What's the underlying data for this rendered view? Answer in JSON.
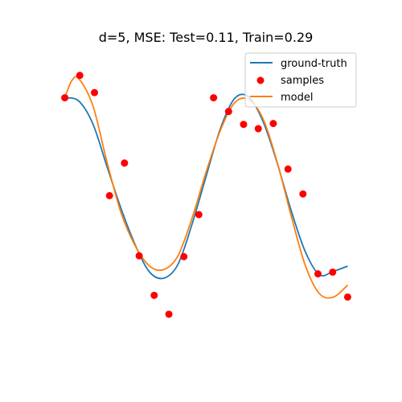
{
  "chart_data": {
    "type": "line",
    "title": "d=5, MSE: Test=0.11, Train=0.29",
    "xlabel": "",
    "ylabel": "",
    "axes_visible": false,
    "grid": false,
    "xlim": [
      -0.05,
      1.05
    ],
    "ylim": [
      -2.0,
      1.5
    ],
    "legend": {
      "position": "top-right",
      "entries": [
        {
          "label": "ground-truth",
          "kind": "line",
          "color": "#1f77b4"
        },
        {
          "label": "samples",
          "kind": "marker",
          "color": "#ff0000"
        },
        {
          "label": "model",
          "kind": "line",
          "color": "#ff7f0e"
        }
      ]
    },
    "series": [
      {
        "name": "ground-truth",
        "kind": "line",
        "color": "#1f77b4",
        "x": [
          0.0,
          0.05,
          0.1,
          0.15,
          0.2,
          0.25,
          0.3,
          0.35,
          0.4,
          0.45,
          0.5,
          0.55,
          0.6,
          0.65,
          0.7,
          0.75,
          0.8,
          0.85,
          0.9,
          0.95,
          1.0
        ],
        "y": [
          0.98,
          0.94,
          0.67,
          0.17,
          -0.32,
          -0.74,
          -1.05,
          -1.12,
          -0.96,
          -0.49,
          0.07,
          0.62,
          0.97,
          0.99,
          0.71,
          0.23,
          -0.33,
          -0.81,
          -1.08,
          -1.04,
          -0.98
        ]
      },
      {
        "name": "samples",
        "kind": "scatter",
        "color": "#ff0000",
        "x": [
          0.0,
          0.053,
          0.105,
          0.158,
          0.211,
          0.263,
          0.316,
          0.368,
          0.421,
          0.474,
          0.526,
          0.579,
          0.632,
          0.684,
          0.737,
          0.789,
          0.842,
          0.895,
          0.947,
          1.0
        ],
        "y": [
          0.98,
          1.24,
          1.04,
          -0.16,
          0.22,
          -0.86,
          -1.32,
          -1.54,
          -0.87,
          -0.38,
          0.98,
          0.82,
          0.67,
          0.62,
          0.68,
          0.15,
          -0.14,
          -1.07,
          -1.05,
          -1.34
        ]
      },
      {
        "name": "model",
        "kind": "line",
        "color": "#ff7f0e",
        "x": [
          0.0,
          0.025,
          0.05,
          0.1,
          0.15,
          0.2,
          0.25,
          0.3,
          0.35,
          0.4,
          0.45,
          0.5,
          0.55,
          0.6,
          0.65,
          0.7,
          0.75,
          0.8,
          0.85,
          0.9,
          0.95,
          1.0
        ],
        "y": [
          0.98,
          1.18,
          1.2,
          0.88,
          0.22,
          -0.37,
          -0.75,
          -0.98,
          -1.02,
          -0.86,
          -0.42,
          0.12,
          0.6,
          0.92,
          0.96,
          0.74,
          0.24,
          -0.39,
          -0.97,
          -1.3,
          -1.34,
          -1.2
        ]
      }
    ]
  }
}
